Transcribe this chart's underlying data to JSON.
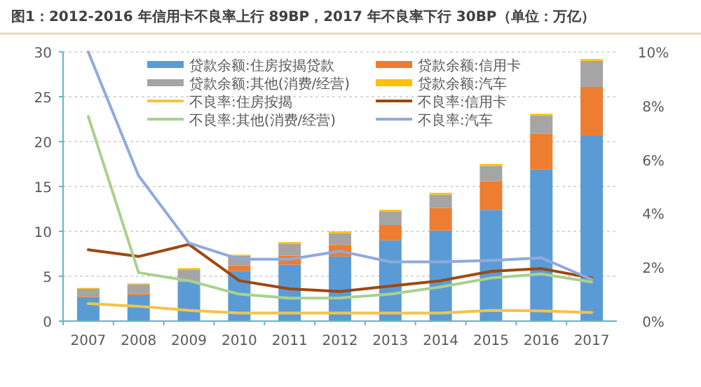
{
  "chart_data": {
    "type": "bar",
    "title": "图1：2012-2016 年信用卡不良率上行 89BP，2017 年不良率下行 30BP（单位：万亿）",
    "categories": [
      "2007",
      "2008",
      "2009",
      "2010",
      "2011",
      "2012",
      "2013",
      "2014",
      "2015",
      "2016",
      "2017"
    ],
    "stacked": true,
    "grid": "y",
    "legend": "top",
    "ylim": [
      0,
      30
    ],
    "yticks": [
      0,
      5,
      10,
      15,
      20,
      25,
      30
    ],
    "y2lim": [
      0,
      10
    ],
    "y2ticks": [
      {
        "value": 0,
        "label": "0%"
      },
      {
        "value": 2,
        "label": "2%"
      },
      {
        "value": 4,
        "label": "4%"
      },
      {
        "value": 6,
        "label": "6%"
      },
      {
        "value": 8,
        "label": "8%"
      },
      {
        "value": 10,
        "label": "10%"
      }
    ],
    "series": [
      {
        "name": "贷款余额:住房按揭贷款",
        "color": "#5b9bd5",
        "values": [
          2.7,
          2.9,
          4.4,
          5.6,
          6.3,
          7.2,
          9.0,
          10.1,
          12.4,
          16.9,
          20.7
        ]
      },
      {
        "name": "贷款余额:信用卡",
        "color": "#ed7d31",
        "values": [
          0.1,
          0.2,
          null,
          0.6,
          1.0,
          1.3,
          1.7,
          2.5,
          3.2,
          4.0,
          5.4
        ]
      },
      {
        "name": "贷款余额:其他(消费/经营)",
        "color": "#a5a5a5",
        "values": [
          0.8,
          1.0,
          1.3,
          1.1,
          1.3,
          1.3,
          1.5,
          1.5,
          1.7,
          2.0,
          2.9
        ]
      },
      {
        "name": "贷款余额:汽车",
        "color": "#ffc000",
        "values": [
          0.1,
          0.1,
          0.2,
          0.1,
          0.2,
          0.2,
          0.2,
          0.2,
          0.2,
          0.2,
          0.2
        ]
      },
      {
        "name": "不良率:住房按揭",
        "type": "line",
        "axis": "y2",
        "color": "#f2c447",
        "values": [
          0.65,
          0.55,
          0.4,
          0.3,
          0.3,
          0.3,
          0.3,
          0.3,
          0.4,
          0.38,
          0.32
        ]
      },
      {
        "name": "不良率:信用卡",
        "type": "line",
        "axis": "y2",
        "color": "#9e480e",
        "values": [
          2.65,
          2.4,
          2.85,
          1.5,
          1.2,
          1.1,
          1.3,
          1.5,
          1.85,
          1.95,
          1.6
        ]
      },
      {
        "name": "不良率:其他(消费/经营)",
        "type": "line",
        "axis": "y2",
        "color": "#a9d18e",
        "values": [
          7.6,
          1.8,
          1.5,
          1.0,
          0.85,
          0.86,
          1.0,
          1.27,
          1.6,
          1.75,
          1.45
        ]
      },
      {
        "name": "不良率:汽车",
        "type": "line",
        "axis": "y2",
        "color": "#8faadc",
        "values": [
          10,
          5.4,
          2.9,
          2.3,
          2.3,
          2.6,
          2.2,
          2.2,
          2.25,
          2.35,
          1.55
        ]
      }
    ]
  }
}
